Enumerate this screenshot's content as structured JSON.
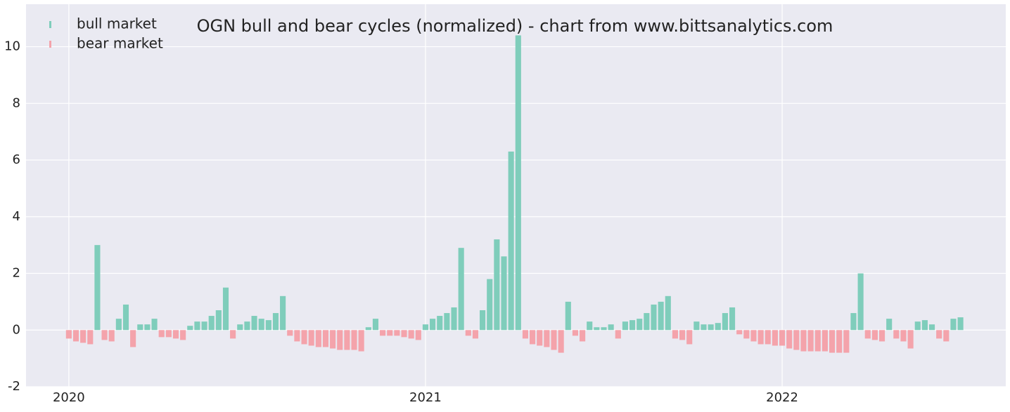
{
  "chart_data": {
    "type": "bar",
    "title": "OGN bull and bear cycles (normalized)  - chart from www.bittsanalytics.com",
    "x": [
      2020,
      2020.02,
      2020.04,
      2020.06,
      2020.08,
      2020.1,
      2020.12,
      2020.14,
      2020.16,
      2020.18,
      2020.2,
      2020.22,
      2020.24,
      2020.26,
      2020.28,
      2020.3,
      2020.32,
      2020.34,
      2020.36,
      2020.38,
      2020.4,
      2020.42,
      2020.44,
      2020.46,
      2020.48,
      2020.5,
      2020.52,
      2020.54,
      2020.56,
      2020.58,
      2020.6,
      2020.62,
      2020.64,
      2020.66,
      2020.68,
      2020.7,
      2020.72,
      2020.74,
      2020.76,
      2020.78,
      2020.8,
      2020.82,
      2020.84,
      2020.86,
      2020.88,
      2020.9,
      2020.92,
      2020.94,
      2020.96,
      2020.98,
      2021,
      2021.02,
      2021.04,
      2021.06,
      2021.08,
      2021.1,
      2021.12,
      2021.14,
      2021.16,
      2021.18,
      2021.2,
      2021.22,
      2021.24,
      2021.26,
      2021.28,
      2021.3,
      2021.32,
      2021.34,
      2021.36,
      2021.38,
      2021.4,
      2021.42,
      2021.44,
      2021.46,
      2021.48,
      2021.5,
      2021.52,
      2021.54,
      2021.56,
      2021.58,
      2021.6,
      2021.62,
      2021.64,
      2021.66,
      2021.68,
      2021.7,
      2021.72,
      2021.74,
      2021.76,
      2021.78,
      2021.8,
      2021.82,
      2021.84,
      2021.86,
      2021.88,
      2021.9,
      2021.92,
      2021.94,
      2021.96,
      2021.98,
      2022,
      2022.02,
      2022.04,
      2022.06,
      2022.08,
      2022.1,
      2022.12,
      2022.14,
      2022.16,
      2022.18,
      2022.2,
      2022.22,
      2022.24,
      2022.26,
      2022.28,
      2022.3,
      2022.32,
      2022.34,
      2022.36,
      2022.38,
      2022.4,
      2022.42,
      2022.44,
      2022.46,
      2022.48,
      2022.5
    ],
    "series": [
      {
        "name": "bull market",
        "color": "#7fcdbb",
        "values": [
          null,
          null,
          null,
          null,
          3.0,
          null,
          null,
          0.4,
          0.9,
          null,
          0.2,
          0.2,
          0.4,
          null,
          null,
          null,
          null,
          0.15,
          0.3,
          0.3,
          0.5,
          0.7,
          1.5,
          null,
          0.2,
          0.3,
          0.5,
          0.4,
          0.35,
          0.6,
          1.2,
          null,
          null,
          null,
          null,
          null,
          null,
          null,
          null,
          null,
          null,
          null,
          0.1,
          0.4,
          null,
          null,
          null,
          null,
          null,
          null,
          0.2,
          0.4,
          0.5,
          0.6,
          0.8,
          2.9,
          null,
          null,
          0.7,
          1.8,
          3.2,
          2.6,
          6.3,
          10.4,
          null,
          null,
          null,
          null,
          null,
          null,
          1.0,
          null,
          null,
          0.3,
          0.1,
          0.1,
          0.2,
          null,
          0.3,
          0.35,
          0.4,
          0.6,
          0.9,
          1.0,
          1.2,
          null,
          null,
          null,
          0.3,
          0.2,
          0.2,
          0.25,
          0.6,
          0.8,
          null,
          null,
          null,
          null,
          null,
          null,
          null,
          null,
          null,
          null,
          null,
          null,
          null,
          null,
          null,
          null,
          0.6,
          2.0,
          null,
          null,
          null,
          0.4,
          null,
          null,
          null,
          0.3,
          0.35,
          0.2,
          null,
          null,
          0.4,
          0.45
        ]
      },
      {
        "name": "bear market",
        "color": "#f4a3ab",
        "values": [
          -0.3,
          -0.4,
          -0.45,
          -0.5,
          null,
          -0.35,
          -0.4,
          null,
          null,
          -0.6,
          null,
          null,
          null,
          -0.25,
          -0.25,
          -0.3,
          -0.35,
          null,
          null,
          null,
          null,
          null,
          null,
          -0.3,
          null,
          null,
          null,
          null,
          null,
          null,
          null,
          -0.2,
          -0.4,
          -0.5,
          -0.55,
          -0.6,
          -0.6,
          -0.65,
          -0.7,
          -0.7,
          -0.7,
          -0.75,
          null,
          null,
          -0.2,
          -0.2,
          -0.2,
          -0.25,
          -0.3,
          -0.35,
          null,
          null,
          null,
          null,
          null,
          null,
          -0.2,
          -0.3,
          null,
          null,
          null,
          null,
          null,
          null,
          -0.3,
          -0.5,
          -0.55,
          -0.6,
          -0.7,
          -0.8,
          null,
          -0.2,
          -0.4,
          null,
          null,
          null,
          null,
          -0.3,
          null,
          null,
          null,
          null,
          null,
          null,
          null,
          -0.3,
          -0.35,
          -0.5,
          null,
          null,
          null,
          null,
          null,
          null,
          -0.15,
          -0.3,
          -0.4,
          -0.5,
          -0.5,
          -0.55,
          -0.55,
          -0.65,
          -0.7,
          -0.75,
          -0.75,
          -0.75,
          -0.75,
          -0.8,
          -0.8,
          -0.8,
          null,
          null,
          -0.3,
          -0.35,
          -0.4,
          null,
          -0.3,
          -0.4,
          -0.65,
          null,
          null,
          null,
          -0.3,
          -0.4,
          null,
          null
        ]
      }
    ],
    "xlim": [
      2019.88,
      2022.627
    ],
    "xticks": [
      2020,
      2021,
      2022
    ],
    "ylim": [
      -2,
      11.5
    ],
    "yticks": [
      -2,
      0,
      2,
      4,
      6,
      8,
      10
    ],
    "grid": true,
    "legend": "upper left"
  }
}
